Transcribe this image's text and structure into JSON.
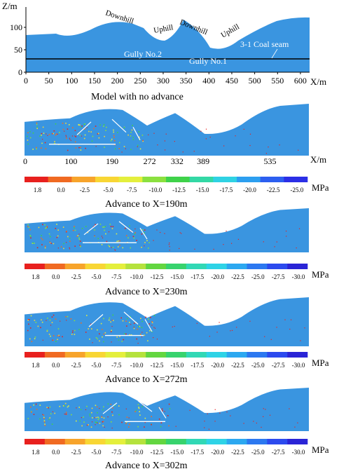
{
  "top_model": {
    "z_axis_label": "Z/m",
    "x_axis_label": "X/m",
    "z_ticks": [
      0,
      50,
      100
    ],
    "x_ticks": [
      0,
      50,
      100,
      150,
      200,
      250,
      300,
      350,
      400,
      450,
      500,
      550,
      600
    ],
    "terrain_labels": [
      "Downhill",
      "Uphill",
      "Downhill",
      "Uphill"
    ],
    "seam_label": "3-1 Coal seam",
    "gully_labels": [
      "Gully No.2",
      "Gully No.1"
    ],
    "caption": "Model with no advance",
    "surface_color": "#3a95e0",
    "seam_line_color": "#000000"
  },
  "stage_panels": [
    {
      "caption": "Advance to X=190m",
      "x_ticks": [
        "0",
        "100",
        "190",
        "272",
        "332",
        "389",
        "535"
      ],
      "x_axis_label": "X/m",
      "scale_values": [
        "1.8",
        "0.0",
        "-2.5",
        "-5.0",
        "-7.5",
        "-10.0",
        "-12.5",
        "-15.0",
        "-17.5",
        "-20.0",
        "-22.5",
        "-25.0"
      ],
      "unit": "MPa"
    },
    {
      "caption": "Advance to X=230m",
      "scale_values": [
        "1.8",
        "0.0",
        "-2.5",
        "-5.0",
        "-7.5",
        "-10.0",
        "-12.5",
        "-15.0",
        "-17.5",
        "-20.0",
        "-22.5",
        "-25.0",
        "-27.5",
        "-30.0"
      ],
      "unit": "MPa"
    },
    {
      "caption": "Advance to X=272m",
      "scale_values": [
        "1.8",
        "0.0",
        "-2.5",
        "-5.0",
        "-7.5",
        "-10.0",
        "-12.5",
        "-15.0",
        "-17.5",
        "-20.0",
        "-22.5",
        "-25.0",
        "-27.5",
        "-30.0"
      ],
      "unit": "MPa"
    },
    {
      "caption": "Advance to X=302m",
      "scale_values": [
        "1.8",
        "0.0",
        "-2.5",
        "-5.0",
        "-7.5",
        "-10.0",
        "-12.5",
        "-15.0",
        "-17.5",
        "-20.0",
        "-22.5",
        "-25.0",
        "-27.5",
        "-30.0"
      ],
      "unit": "MPa"
    }
  ],
  "scale_colors_12": [
    "#e8201e",
    "#f06a22",
    "#f7a42b",
    "#f8d634",
    "#e4ef3c",
    "#8be03f",
    "#3fd24a",
    "#33d8a5",
    "#2fd2e3",
    "#2c9ff0",
    "#2c5ff0",
    "#2b2fe6"
  ],
  "scale_colors_14": [
    "#e8201e",
    "#f06a22",
    "#f7a42b",
    "#f8d634",
    "#e4ef3c",
    "#b5e23d",
    "#63d640",
    "#37d36d",
    "#31d8b5",
    "#2ed3e6",
    "#2ca8f0",
    "#2c78f0",
    "#2c4aee",
    "#2a24d6"
  ],
  "model_color": "#3a95e0"
}
